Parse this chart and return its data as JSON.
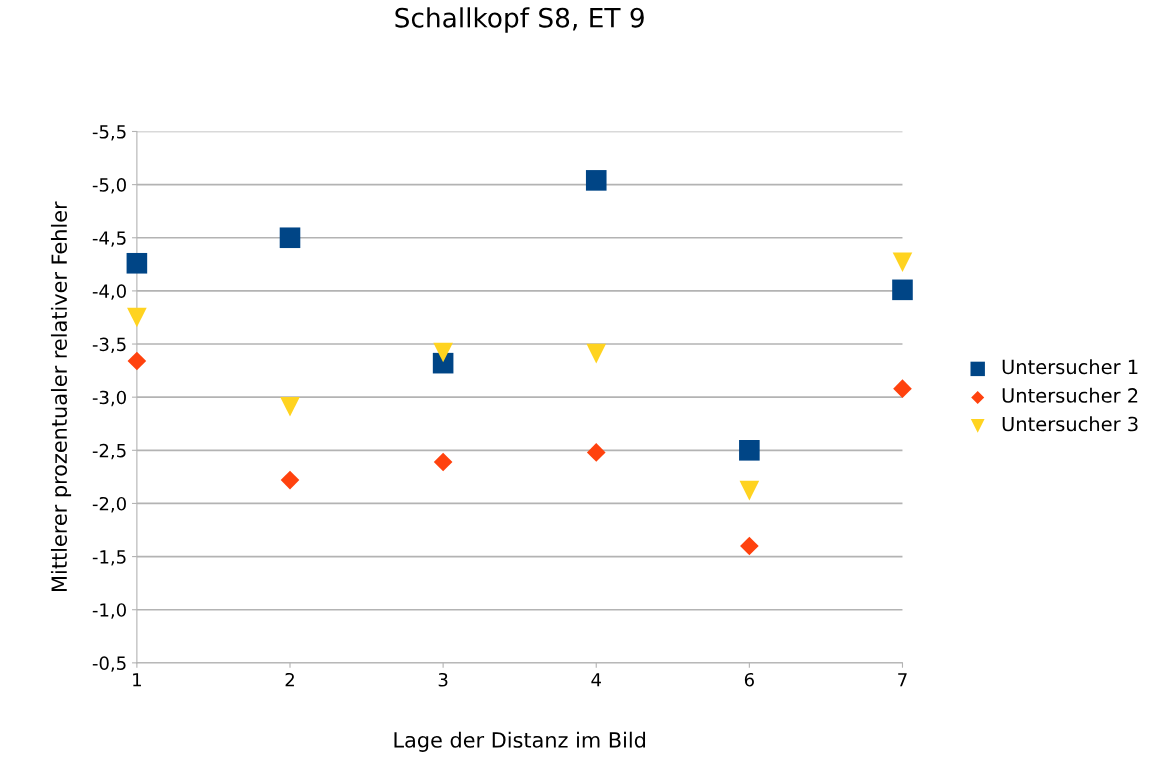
{
  "chart_data": {
    "type": "scatter",
    "title": "Schallkopf S8, ET 9",
    "xlabel": "Lage der Distanz im Bild",
    "ylabel": "Mittlerer prozentualer relativer Fehler",
    "categories": [
      "1",
      "2",
      "3",
      "4",
      "6",
      "7"
    ],
    "series": [
      {
        "name": "Untersucher 1",
        "color": "#004586",
        "marker": "square",
        "values": [
          -4.26,
          -4.5,
          -3.32,
          -5.04,
          -2.5,
          -4.01
        ]
      },
      {
        "name": "Untersucher 2",
        "color": "#ff420e",
        "marker": "diamond",
        "values": [
          -3.34,
          -2.22,
          -2.39,
          -2.48,
          -1.6,
          -3.08
        ]
      },
      {
        "name": "Untersucher 3",
        "color": "#ffd320",
        "marker": "triangle",
        "values": [
          -3.75,
          -2.91,
          -3.42,
          -3.41,
          -2.12,
          -4.27
        ]
      }
    ],
    "ylim": [
      -0.5,
      -5.5
    ],
    "yticks": [
      {
        "value": -5.5,
        "label": "-5,5"
      },
      {
        "value": -5.0,
        "label": "-5,0"
      },
      {
        "value": -4.5,
        "label": "-4,5"
      },
      {
        "value": -4.0,
        "label": "-4,0"
      },
      {
        "value": -3.5,
        "label": "-3,5"
      },
      {
        "value": -3.0,
        "label": "-3,0"
      },
      {
        "value": -2.5,
        "label": "-2,5"
      },
      {
        "value": -2.0,
        "label": "-2,0"
      },
      {
        "value": -1.5,
        "label": "-1,5"
      },
      {
        "value": -1.0,
        "label": "-1,0"
      },
      {
        "value": -0.5,
        "label": "-0,5"
      }
    ],
    "grid": "y",
    "legend": "right"
  }
}
